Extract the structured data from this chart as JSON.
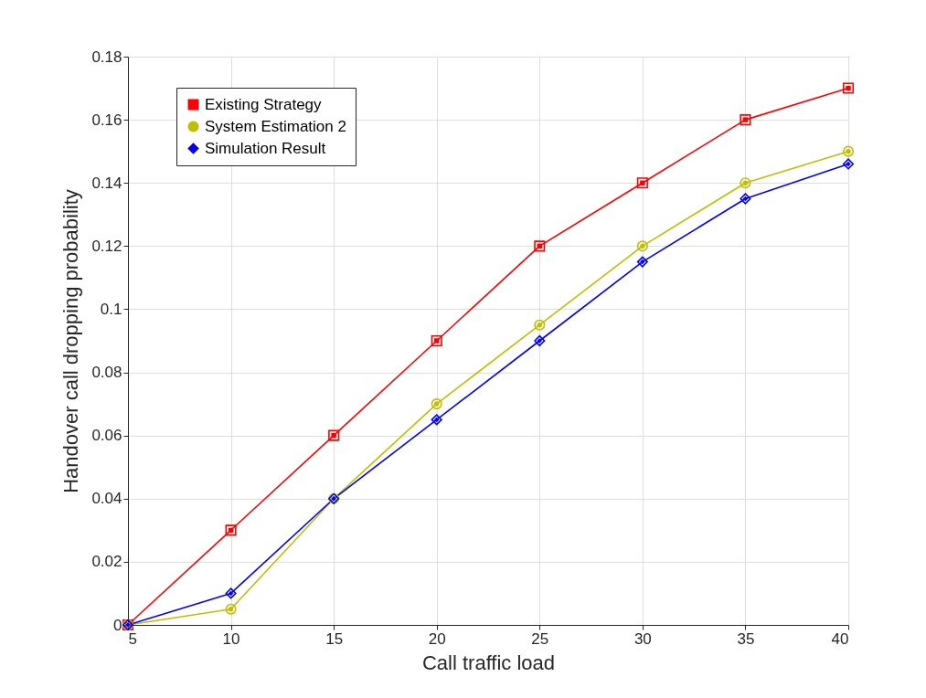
{
  "chart_data": {
    "type": "line",
    "xlabel": "Call traffic load",
    "ylabel": "Handover call dropping probability",
    "x": [
      5,
      10,
      15,
      20,
      25,
      30,
      35,
      40
    ],
    "series": [
      {
        "name": "Existing Strategy",
        "color": "#ff0000",
        "marker": "square",
        "values": [
          0,
          0.03,
          0.06,
          0.09,
          0.12,
          0.14,
          0.16,
          0.17
        ]
      },
      {
        "name": "System Estimation 2",
        "color": "#bfbf00",
        "marker": "circle",
        "values": [
          0,
          0.005,
          0.04,
          0.07,
          0.095,
          0.12,
          0.14,
          0.15
        ]
      },
      {
        "name": "Simulation Result",
        "color": "#0000ff",
        "marker": "diamond",
        "values": [
          0,
          0.01,
          0.04,
          0.065,
          0.09,
          0.115,
          0.135,
          0.146
        ]
      }
    ],
    "xlim": [
      5,
      40
    ],
    "xticks": [
      5,
      10,
      15,
      20,
      25,
      30,
      35,
      40
    ],
    "ylim": [
      0,
      0.18
    ],
    "yticks": [
      0,
      0.02,
      0.04,
      0.06,
      0.08,
      0.1,
      0.12,
      0.14,
      0.16,
      0.18
    ],
    "grid": true,
    "legend": "top left",
    "line_style": "solid"
  }
}
